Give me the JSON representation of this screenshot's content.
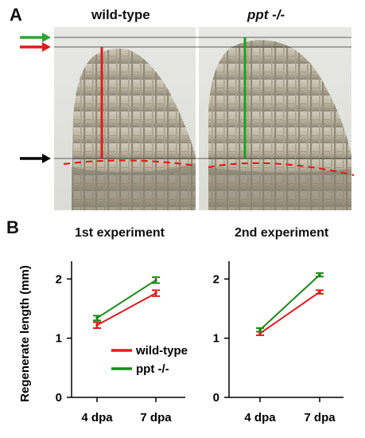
{
  "panel_a": {
    "letter": "A",
    "left_title": "wild-type",
    "right_title": "ppt -/-",
    "left_image": "wild-type regenerating fin micrograph",
    "right_image": "ppt -/- regenerating fin micrograph",
    "colors": {
      "green_arrow": "#2fa32f",
      "red_arrow": "#e21b1b",
      "black_arrow": "#000000",
      "red_line": "#e21b1b",
      "green_line": "#17a31a",
      "dashed_line": "#e21b1b"
    }
  },
  "panel_b": {
    "letter": "B"
  },
  "chart_data": [
    {
      "type": "line",
      "title": "1st experiment",
      "ylabel": "Regenerate length (mm)",
      "categories": [
        "4 dpa",
        "7 dpa"
      ],
      "yticks": [
        "0",
        "1",
        "2"
      ],
      "ylim": [
        0,
        2.3
      ],
      "series": [
        {
          "name": "wild-type",
          "color": "#e21b1b",
          "values": [
            1.22,
            1.76
          ],
          "errors": [
            0.05,
            0.05
          ]
        },
        {
          "name": "ppt -/-",
          "color": "#1a8a1a",
          "values": [
            1.34,
            1.98
          ],
          "errors": [
            0.04,
            0.05
          ]
        }
      ],
      "legend": "inside-bottom-right"
    },
    {
      "type": "line",
      "title": "2nd experiment",
      "ylabel": "",
      "categories": [
        "4 dpa",
        "7 dpa"
      ],
      "yticks": [
        "0",
        "1",
        "2"
      ],
      "ylim": [
        0,
        2.3
      ],
      "series": [
        {
          "name": "wild-type",
          "color": "#e21b1b",
          "values": [
            1.08,
            1.78
          ],
          "errors": [
            0.03,
            0.03
          ]
        },
        {
          "name": "ppt -/-",
          "color": "#1a8a1a",
          "values": [
            1.14,
            2.07
          ],
          "errors": [
            0.03,
            0.03
          ]
        }
      ]
    }
  ]
}
